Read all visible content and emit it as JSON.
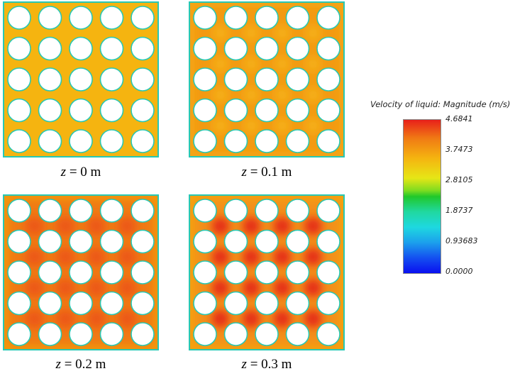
{
  "panels": [
    {
      "label_var": "z",
      "label_eq": " = ",
      "label_val": "0 m",
      "field": "uniform"
    },
    {
      "label_var": "z",
      "label_eq": " = ",
      "label_val": "0.1 m",
      "field": "low"
    },
    {
      "label_var": "z",
      "label_eq": " = ",
      "label_val": "0.2 m",
      "field": "mid"
    },
    {
      "label_var": "z",
      "label_eq": " = ",
      "label_val": "0.3 m",
      "field": "high"
    }
  ],
  "grid": {
    "rows": 5,
    "cols": 5
  },
  "legend": {
    "title": "Velocity of liquid: Magnitude (m/s)",
    "ticks": [
      "4.6841",
      "3.7473",
      "2.8105",
      "1.8737",
      "0.93683",
      "0.0000"
    ]
  },
  "colors": {
    "wall": "#28c8b4",
    "uniform_bg": "#f5b410",
    "low_bg": "#f39a12",
    "low_gap": "#f5b012",
    "mid_bg": "#f07a14",
    "mid_gap": "#ec5818",
    "high_bg": "#f3901a",
    "high_gap": "#e83a18",
    "high_hot": "#e01818"
  }
}
